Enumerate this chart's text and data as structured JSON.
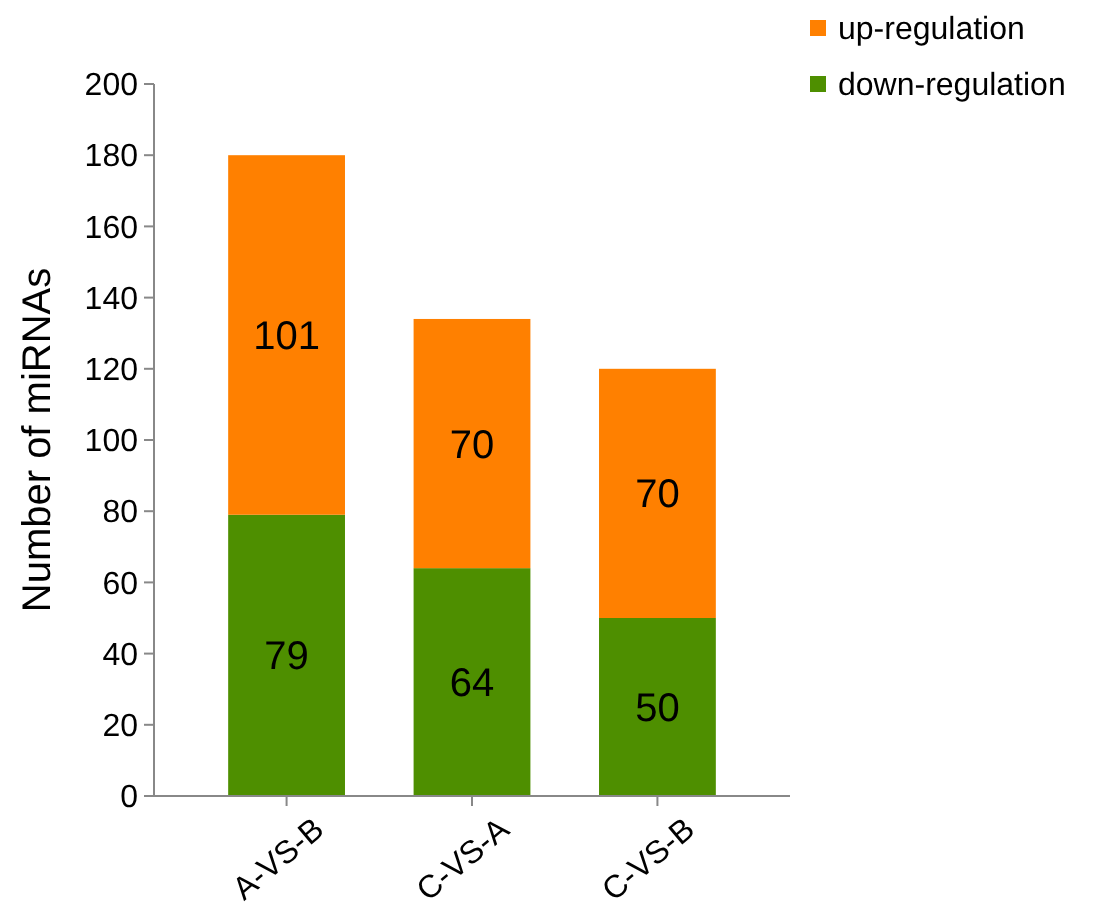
{
  "chart_data": {
    "type": "bar",
    "stacked": true,
    "ylabel": "Number of miRNAs",
    "categories": [
      "A-VS-B",
      "C-VS-A",
      "C-VS-B"
    ],
    "series": [
      {
        "name": "down-regulation",
        "color": "#4e8f00",
        "values": [
          79,
          64,
          50
        ]
      },
      {
        "name": "up-regulation",
        "color": "#ff8000",
        "values": [
          101,
          70,
          70
        ]
      }
    ],
    "ylim": [
      0,
      200
    ],
    "yticks": [
      0,
      20,
      40,
      60,
      80,
      100,
      120,
      140,
      160,
      180,
      200
    ],
    "data_labels": true,
    "legend": "top right",
    "grid": false
  }
}
